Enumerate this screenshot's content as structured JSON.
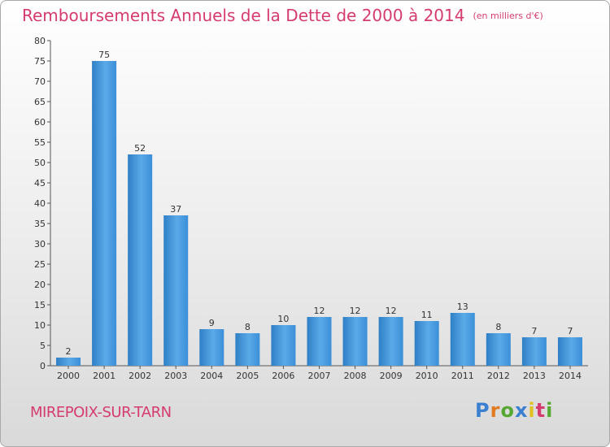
{
  "chart_data": {
    "type": "bar",
    "title": "Remboursements Annuels de la Dette de 2000 à 2014",
    "subtitle": "(en milliers d'€)",
    "categories": [
      "2000",
      "2001",
      "2002",
      "2003",
      "2004",
      "2005",
      "2006",
      "2007",
      "2008",
      "2009",
      "2010",
      "2011",
      "2012",
      "2013",
      "2014"
    ],
    "values": [
      2,
      75,
      52,
      37,
      9,
      8,
      10,
      12,
      12,
      12,
      11,
      13,
      8,
      7,
      7
    ],
    "ylim": [
      0,
      80
    ],
    "yticks": [
      0,
      5,
      10,
      15,
      20,
      25,
      30,
      35,
      40,
      45,
      50,
      55,
      60,
      65,
      70,
      75,
      80
    ],
    "grid": false,
    "bar_color": "#3b8fd8"
  },
  "footer": {
    "commune": "MIREPOIX-SUR-TARN",
    "logo": "Proxiti"
  }
}
